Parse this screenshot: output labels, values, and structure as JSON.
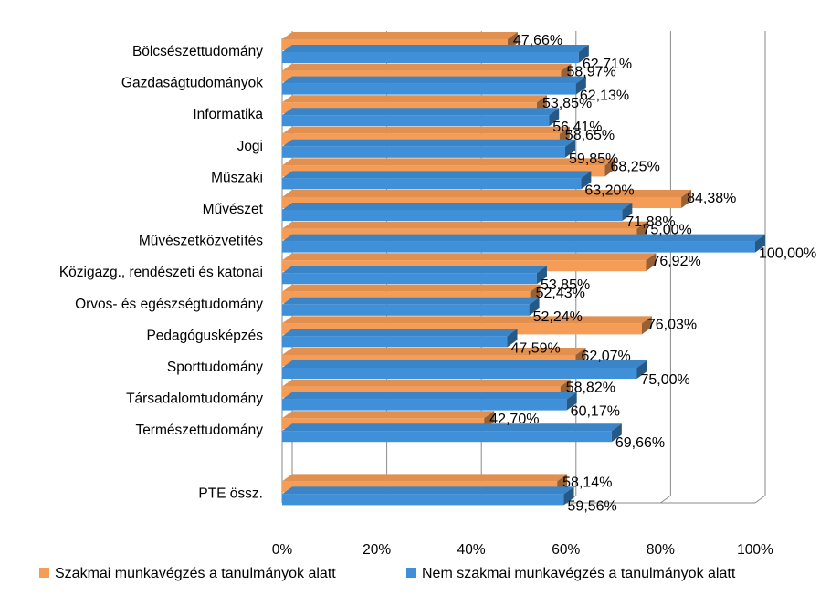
{
  "chart_data": {
    "type": "bar",
    "orientation": "horizontal",
    "style": "3d",
    "categories": [
      "Bölcsészettudomány",
      "Gazdaságtudományok",
      "Informatika",
      "Jogi",
      "Műszaki",
      "Művészet",
      "Művészetközvetítés",
      "Közigazg., rendészeti és katonai",
      "Orvos- és egészségtudomány",
      "Pedagógusképzés",
      "Sporttudomány",
      "Társadalomtudomány",
      "Természettudomány",
      "",
      "PTE össz."
    ],
    "series": [
      {
        "name": "Szakmai munkavégzés a tanulmányok alatt",
        "color": "#F59D56",
        "values": [
          47.66,
          58.97,
          53.85,
          58.65,
          68.25,
          84.38,
          75.0,
          76.92,
          52.43,
          76.03,
          62.07,
          58.82,
          42.7,
          null,
          58.14
        ],
        "labels": [
          "47,66%",
          "58,97%",
          "53,85%",
          "58,65%",
          "68,25%",
          "84,38%",
          "75,00%",
          "76,92%",
          "52,43%",
          "76,03%",
          "62,07%",
          "58,82%",
          "42,70%",
          "",
          "58,14%"
        ]
      },
      {
        "name": "Nem szakmai munkavégzés a tanulmányok alatt",
        "color": "#3F8FD9",
        "values": [
          62.71,
          62.13,
          56.41,
          59.85,
          63.2,
          71.88,
          100.0,
          53.85,
          52.24,
          47.59,
          75.0,
          60.17,
          69.66,
          null,
          59.56
        ],
        "labels": [
          "62,71%",
          "62,13%",
          "56,41%",
          "59,85%",
          "63,20%",
          "71,88%",
          "100,00%",
          "53,85%",
          "52,24%",
          "47,59%",
          "75,00%",
          "60,17%",
          "69,66%",
          "",
          "59,56%"
        ]
      }
    ],
    "x_ticks": [
      "0%",
      "20%",
      "40%",
      "60%",
      "80%",
      "100%"
    ],
    "xlim": [
      0,
      100
    ],
    "grid": true,
    "legend": "bottom"
  }
}
